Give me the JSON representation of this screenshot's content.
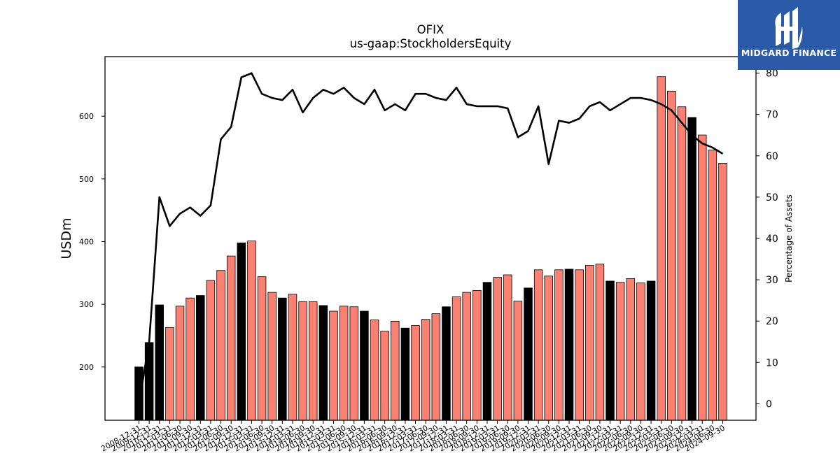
{
  "chart_data": {
    "type": "bar",
    "title": "OFIX",
    "subtitle": "us-gaap:StockholdersEquity",
    "ylabel": "USDm",
    "y2label": "Percentage of Assets",
    "ylim": [
      115,
      695
    ],
    "y2lim": [
      -4,
      84
    ],
    "yticks": [
      200,
      300,
      400,
      500,
      600
    ],
    "y2ticks": [
      0,
      10,
      20,
      30,
      40,
      50,
      60,
      70,
      80
    ],
    "categories": [
      "2008-12-31",
      "2009-12-31",
      "2010-12-31",
      "2011-03-31",
      "2011-06-30",
      "2011-09-30",
      "2011-12-31",
      "2012-03-31",
      "2012-06-30",
      "2012-09-30",
      "2012-12-31",
      "2013-03-31",
      "2013-06-30",
      "2013-09-30",
      "2013-12-31",
      "2014-03-31",
      "2014-06-30",
      "2014-09-30",
      "2014-12-31",
      "2015-03-31",
      "2015-06-30",
      "2015-09-30",
      "2015-12-31",
      "2016-03-31",
      "2016-06-30",
      "2016-09-30",
      "2016-12-31",
      "2017-03-31",
      "2017-06-30",
      "2017-09-30",
      "2017-12-31",
      "2018-03-31",
      "2018-06-30",
      "2018-09-30",
      "2018-12-31",
      "2019-03-31",
      "2019-06-30",
      "2019-09-30",
      "2019-12-31",
      "2020-03-31",
      "2020-06-30",
      "2020-09-30",
      "2020-12-31",
      "2021-03-31",
      "2021-06-30",
      "2021-09-30",
      "2021-12-31",
      "2022-03-31",
      "2022-06-30",
      "2022-09-30",
      "2022-12-31",
      "2023-03-31",
      "2023-06-30",
      "2023-09-30",
      "2023-12-31",
      "2024-03-31",
      "2024-06-30",
      "2024-09-30"
    ],
    "series": [
      {
        "kind": "bar",
        "values": [
          200,
          239,
          299,
          263,
          297,
          310,
          314,
          338,
          354,
          377,
          398,
          401,
          344,
          319,
          310,
          316,
          304,
          304,
          298,
          289,
          297,
          296,
          289,
          275,
          257,
          273,
          262,
          266,
          276,
          285,
          296,
          312,
          319,
          322,
          335,
          343,
          347,
          305,
          326,
          355,
          345,
          355,
          356,
          355,
          362,
          364,
          337,
          335,
          341,
          334,
          337,
          663,
          640,
          615,
          598,
          570,
          546,
          525
        ],
        "colors": [
          "#000000",
          "#000000",
          "#000000",
          "#fa8072",
          "#fa8072",
          "#fa8072",
          "#000000",
          "#fa8072",
          "#fa8072",
          "#fa8072",
          "#000000",
          "#fa8072",
          "#fa8072",
          "#fa8072",
          "#000000",
          "#fa8072",
          "#fa8072",
          "#fa8072",
          "#000000",
          "#fa8072",
          "#fa8072",
          "#fa8072",
          "#000000",
          "#fa8072",
          "#fa8072",
          "#fa8072",
          "#000000",
          "#fa8072",
          "#fa8072",
          "#fa8072",
          "#000000",
          "#fa8072",
          "#fa8072",
          "#fa8072",
          "#000000",
          "#fa8072",
          "#fa8072",
          "#fa8072",
          "#000000",
          "#fa8072",
          "#fa8072",
          "#fa8072",
          "#000000",
          "#fa8072",
          "#fa8072",
          "#fa8072",
          "#000000",
          "#fa8072",
          "#fa8072",
          "#fa8072",
          "#000000",
          "#fa8072",
          "#fa8072",
          "#fa8072",
          "#000000",
          "#fa8072",
          "#fa8072",
          "#fa8072"
        ]
      },
      {
        "kind": "line",
        "axis": "right",
        "color": "#000000",
        "values": [
          0,
          15,
          50,
          43,
          46,
          47.5,
          45.5,
          48,
          64,
          67,
          79,
          80,
          75,
          74,
          73.5,
          76,
          70.5,
          74,
          76,
          75,
          76.5,
          74,
          72.5,
          76,
          71,
          72.5,
          71,
          75,
          75,
          74,
          73.5,
          76.5,
          72.5,
          72,
          72,
          72,
          71.5,
          64.5,
          66,
          72,
          58,
          68.5,
          68,
          69,
          72,
          73,
          71,
          72.5,
          74,
          74,
          73.5,
          72.5,
          71,
          68,
          65,
          63,
          62,
          60.5
        ]
      }
    ],
    "grid": false
  },
  "logo": {
    "text": "MIDGARD FINANCE",
    "bg": "#2b5aa8"
  }
}
